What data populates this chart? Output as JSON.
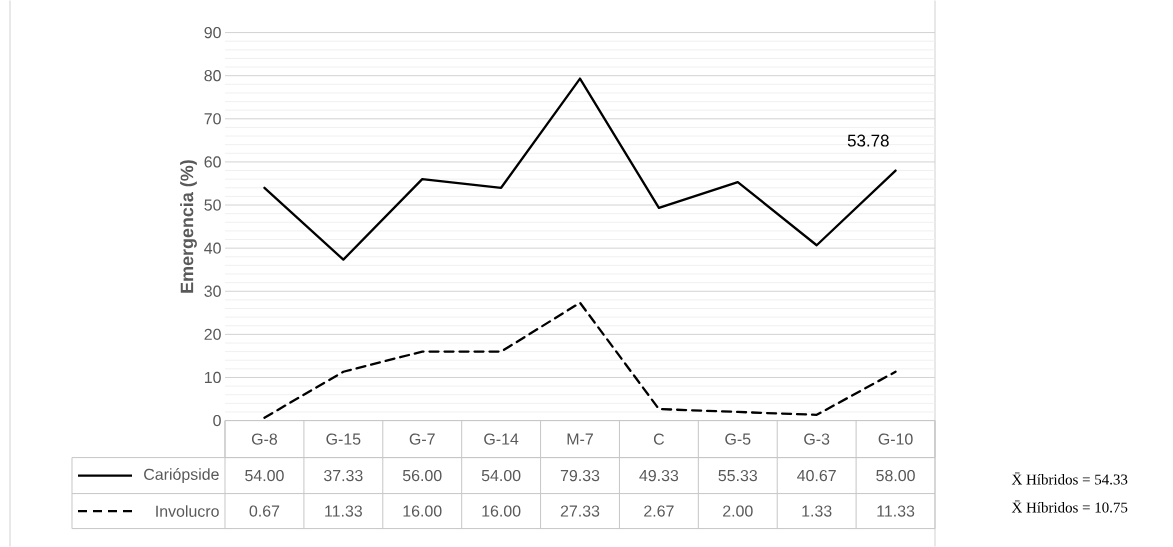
{
  "chart_data": {
    "type": "line",
    "ylabel": "Emergencia (%)",
    "categories": [
      "G-8",
      "G-15",
      "G-7",
      "G-14",
      "M-7",
      "C",
      "G-5",
      "G-3",
      "G-10"
    ],
    "series": [
      {
        "name": "Cariópside",
        "color": "#000000",
        "line_style": "solid",
        "values": [
          54.0,
          37.33,
          56.0,
          54.0,
          79.33,
          49.33,
          55.33,
          40.67,
          58.0
        ],
        "value_labels": [
          "54.00",
          "37.33",
          "56.00",
          "54.00",
          "79.33",
          "49.33",
          "55.33",
          "40.67",
          "58.00"
        ]
      },
      {
        "name": "Involucro",
        "color": "#000000",
        "line_style": "dashed",
        "values": [
          0.67,
          11.33,
          16.0,
          16.0,
          27.33,
          2.67,
          2.0,
          1.33,
          11.33
        ],
        "value_labels": [
          "0.67",
          "11.33",
          "16.00",
          "16.00",
          "27.33",
          "2.67",
          "2.00",
          "1.33",
          "11.33"
        ]
      }
    ],
    "ylim": [
      0,
      90
    ],
    "yticks": [
      0,
      10,
      20,
      30,
      40,
      50,
      60,
      70,
      80,
      90
    ],
    "grid": "y",
    "legend": "bottom",
    "marker": "none",
    "annotations": [
      "53.78",
      "X̄ Híbridos = 54.33",
      "X̄ Híbridos = 10.75"
    ]
  }
}
